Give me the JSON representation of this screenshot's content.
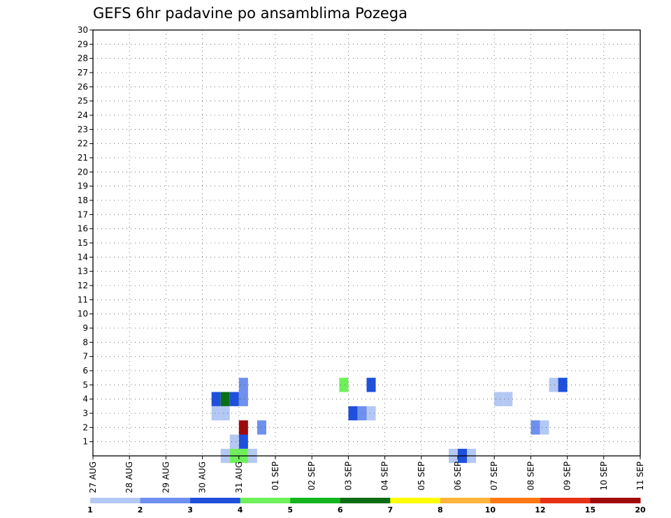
{
  "chart_data": {
    "type": "heatmap",
    "title": "GEFS 6hr padavine po ansamblima Pozega",
    "xlabel": "",
    "ylabel": "",
    "x_tick_labels": [
      "27 AUG",
      "28 AUG",
      "29 AUG",
      "30 AUG",
      "31 AUG",
      "01 SEP",
      "02 SEP",
      "03 SEP",
      "04 SEP",
      "05 SEP",
      "06 SEP",
      "07 SEP",
      "08 SEP",
      "09 SEP",
      "10 SEP",
      "11 SEP"
    ],
    "y_tick_labels": [
      "1",
      "2",
      "3",
      "4",
      "5",
      "6",
      "7",
      "8",
      "9",
      "10",
      "11",
      "12",
      "13",
      "14",
      "15",
      "16",
      "17",
      "18",
      "19",
      "20",
      "21",
      "22",
      "23",
      "24",
      "25",
      "26",
      "27",
      "28",
      "29",
      "30"
    ],
    "x_range_days": [
      0,
      15
    ],
    "y_range_members": [
      0,
      30
    ],
    "time_step_hours": 6,
    "grid": "dotted",
    "colorbar": {
      "position": "bottom",
      "labels": [
        "1",
        "2",
        "3",
        "4",
        "5",
        "6",
        "7",
        "8",
        "10",
        "12",
        "15",
        "20"
      ],
      "colors": [
        "#b4c8f4",
        "#6e90ee",
        "#1e50dc",
        "#6ef05a",
        "#14b41e",
        "#0a6e14",
        "#ffff00",
        "#ffb43c",
        "#ff7814",
        "#e63214",
        "#a00a0a"
      ]
    },
    "cells": [
      {
        "d": "30 AUG 12",
        "m": 0,
        "v": 1
      },
      {
        "d": "30 AUG 18",
        "m": 0,
        "v": 4
      },
      {
        "d": "31 AUG 00",
        "m": 0,
        "v": 4
      },
      {
        "d": "31 AUG 06",
        "m": 0,
        "v": 1
      },
      {
        "d": "06 SEP 06",
        "m": 0,
        "v": 1
      },
      {
        "d": "06 SEP 00",
        "m": 0,
        "v": 3
      },
      {
        "d": "05 SEP 18",
        "m": 0,
        "v": 1
      },
      {
        "d": "31 AUG 00",
        "m": 1,
        "v": 3
      },
      {
        "d": "30 AUG 18",
        "m": 1,
        "v": 1
      },
      {
        "d": "31 AUG 00",
        "m": 2,
        "v": 15
      },
      {
        "d": "31 AUG 12",
        "m": 2,
        "v": 2
      },
      {
        "d": "08 SEP 00",
        "m": 2,
        "v": 2
      },
      {
        "d": "08 SEP 06",
        "m": 2,
        "v": 1
      },
      {
        "d": "30 AUG 06",
        "m": 3,
        "v": 1
      },
      {
        "d": "30 AUG 12",
        "m": 3,
        "v": 1
      },
      {
        "d": "03 SEP 00",
        "m": 3,
        "v": 3
      },
      {
        "d": "03 SEP 06",
        "m": 3,
        "v": 2
      },
      {
        "d": "03 SEP 12",
        "m": 3,
        "v": 1
      },
      {
        "d": "30 AUG 06",
        "m": 4,
        "v": 3
      },
      {
        "d": "30 AUG 12",
        "m": 4,
        "v": 6
      },
      {
        "d": "30 AUG 18",
        "m": 4,
        "v": 3
      },
      {
        "d": "31 AUG 00",
        "m": 4,
        "v": 2
      },
      {
        "d": "07 SEP 00",
        "m": 4,
        "v": 1
      },
      {
        "d": "07 SEP 06",
        "m": 4,
        "v": 1
      },
      {
        "d": "31 AUG 00",
        "m": 5,
        "v": 2
      },
      {
        "d": "02 SEP 18",
        "m": 5,
        "v": 4
      },
      {
        "d": "03 SEP 12",
        "m": 5,
        "v": 3
      },
      {
        "d": "08 SEP 12",
        "m": 5,
        "v": 1
      },
      {
        "d": "08 SEP 18",
        "m": 5,
        "v": 3
      }
    ]
  }
}
